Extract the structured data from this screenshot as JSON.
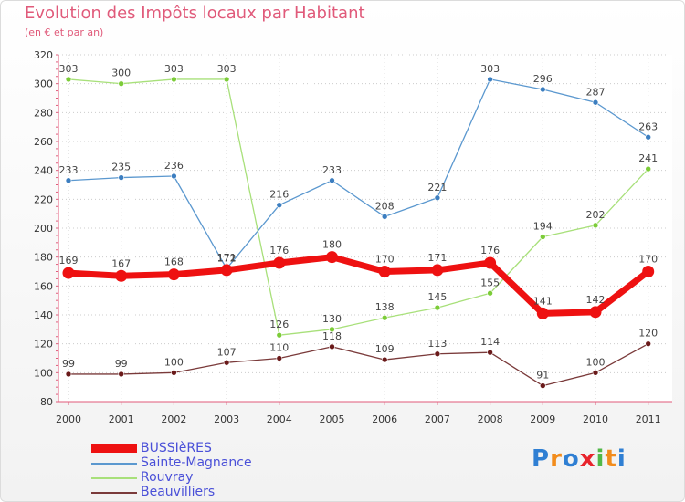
{
  "chart_data": {
    "type": "line",
    "title": "Evolution des Impôts locaux par Habitant",
    "subtitle": "(en € et par an)",
    "xlabel": "",
    "ylabel": "",
    "categories": [
      "2000",
      "2001",
      "2002",
      "2003",
      "2004",
      "2005",
      "2006",
      "2007",
      "2008",
      "2009",
      "2010",
      "2011"
    ],
    "ylim": [
      80,
      320
    ],
    "yticks": [
      80,
      100,
      120,
      140,
      160,
      180,
      200,
      220,
      240,
      260,
      280,
      300,
      320
    ],
    "grid": true,
    "legend_position": "bottom-left",
    "series": [
      {
        "name": "Sainte-Magnance",
        "color": "#5b98cf",
        "point_color": "#3c7ec0",
        "values": [
          233,
          235,
          236,
          172,
          216,
          233,
          208,
          221,
          303,
          296,
          287,
          263
        ]
      },
      {
        "name": "Rouvray",
        "color": "#a8e07a",
        "point_color": "#7ccc38",
        "values": [
          303,
          300,
          303,
          303,
          126,
          130,
          138,
          145,
          155,
          194,
          202,
          241
        ]
      },
      {
        "name": "Beauvilliers",
        "color": "#7a3a3a",
        "point_color": "#6a1a1a",
        "values": [
          99,
          99,
          100,
          107,
          110,
          118,
          109,
          113,
          114,
          91,
          100,
          120
        ]
      },
      {
        "name": "BUSSIèRES",
        "color": "#ee1111",
        "point_color": "#ee1111",
        "values": [
          169,
          167,
          168,
          171,
          176,
          180,
          170,
          171,
          176,
          141,
          142,
          170
        ]
      }
    ],
    "legend_order": [
      "BUSSIèRES",
      "Sainte-Magnance",
      "Rouvray",
      "Beauvilliers"
    ]
  },
  "brand": {
    "letters": [
      "P",
      "r",
      "o",
      "x",
      "i",
      "t",
      "i"
    ],
    "colors": [
      "#2f7fd3",
      "#f28c1c",
      "#2f7fd3",
      "#e8242c",
      "#52b848",
      "#f28c1c",
      "#2f7fd3"
    ]
  }
}
